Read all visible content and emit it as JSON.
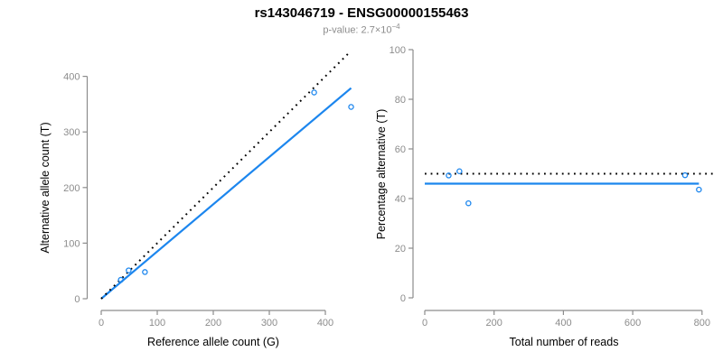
{
  "header": {
    "title": "rs143046719 - ENSG00000155463",
    "p_value_base": "p-value: 2.7×10",
    "p_value_exponent": "−4"
  },
  "colors": {
    "accent_blue": "#1c86ee",
    "reference_line_black": "#000000",
    "axis_gray": "#8c8c8c"
  },
  "chart_data": [
    {
      "type": "scatter",
      "panel": "left",
      "xlabel": "Reference allele count (G)",
      "ylabel": "Alternative allele count (T)",
      "x_ticks": [
        0,
        100,
        200,
        300,
        400
      ],
      "y_ticks": [
        0,
        100,
        200,
        300,
        400
      ],
      "xlim": [
        0,
        446
      ],
      "ylim": [
        0,
        448
      ],
      "grid": false,
      "points": [
        {
          "x": 35,
          "y": 34
        },
        {
          "x": 49,
          "y": 51
        },
        {
          "x": 78,
          "y": 48
        },
        {
          "x": 380,
          "y": 371
        },
        {
          "x": 446,
          "y": 345
        }
      ],
      "lines": [
        {
          "name": "regression-line",
          "style": "solid",
          "color_key": "accent_blue",
          "x1": 0,
          "y1": 0,
          "x2": 446,
          "y2": 379
        },
        {
          "name": "identity-line",
          "style": "dotted",
          "color_key": "reference_line_black",
          "x1": 0,
          "y1": 0,
          "x2": 445,
          "y2": 445
        }
      ]
    },
    {
      "type": "scatter",
      "panel": "right",
      "xlabel": "Total number of reads",
      "ylabel": "Percentage alternative (T)",
      "x_ticks": [
        0,
        200,
        400,
        600,
        800
      ],
      "y_ticks": [
        0,
        20,
        40,
        60,
        80,
        100
      ],
      "xlim": [
        0,
        840
      ],
      "ylim": [
        0,
        100
      ],
      "grid": false,
      "points": [
        {
          "x": 69,
          "y": 49.3
        },
        {
          "x": 100,
          "y": 51
        },
        {
          "x": 126,
          "y": 38.1
        },
        {
          "x": 751,
          "y": 49.4
        },
        {
          "x": 791,
          "y": 43.6
        }
      ],
      "lines": [
        {
          "name": "mean-percentage-line",
          "style": "solid",
          "color_key": "accent_blue",
          "x1": 0,
          "y1": 46,
          "x2": 791,
          "y2": 46
        },
        {
          "name": "expected-percentage-line",
          "style": "dotted",
          "color_key": "reference_line_black",
          "x1": 0,
          "y1": 50,
          "x2": 840,
          "y2": 50
        }
      ]
    }
  ]
}
